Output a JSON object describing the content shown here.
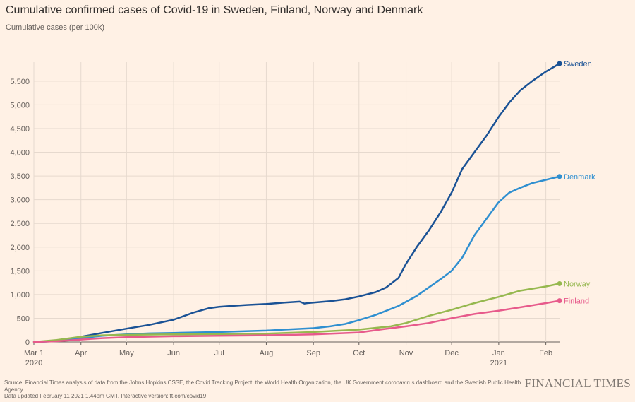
{
  "title": "Cumulative confirmed cases of Covid-19 in Sweden, Finland, Norway and Denmark",
  "subtitle": "Cumulative cases (per 100k)",
  "footer": {
    "source": "Source: Financial Times analysis of data from the Johns Hopkins CSSE, the Covid Tracking Project, the World Health Organization, the UK Government coronavirus dashboard and the Swedish Public Health Agency.",
    "updated": "Data updated February 11 2021 1.44pm GMT. Interactive version: ft.com/covid19"
  },
  "logo": "FINANCIAL TIMES",
  "chart_data": {
    "type": "line",
    "title": "Cumulative confirmed cases of Covid-19 in Sweden, Finland, Norway and Denmark",
    "ylabel": "Cumulative cases (per 100k)",
    "xlabel": "",
    "x_unit": "days since Mar 1 2020",
    "xlim": [
      0,
      346
    ],
    "ylim": [
      0,
      5900
    ],
    "yticks": [
      0,
      500,
      1000,
      1500,
      2000,
      2500,
      3000,
      3500,
      4000,
      4500,
      5000,
      5500
    ],
    "ytick_labels": [
      "0",
      "500",
      "1,000",
      "1,500",
      "2,000",
      "2,500",
      "3,000",
      "3,500",
      "4,000",
      "4,500",
      "5,000",
      "5,500"
    ],
    "xticks": [
      {
        "x": 0,
        "label": "Mar 1",
        "sublabel": "2020"
      },
      {
        "x": 31,
        "label": "Apr",
        "sublabel": ""
      },
      {
        "x": 61,
        "label": "May",
        "sublabel": ""
      },
      {
        "x": 92,
        "label": "Jun",
        "sublabel": ""
      },
      {
        "x": 122,
        "label": "Jul",
        "sublabel": ""
      },
      {
        "x": 153,
        "label": "Aug",
        "sublabel": ""
      },
      {
        "x": 184,
        "label": "Sep",
        "sublabel": ""
      },
      {
        "x": 214,
        "label": "Oct",
        "sublabel": ""
      },
      {
        "x": 245,
        "label": "Nov",
        "sublabel": ""
      },
      {
        "x": 275,
        "label": "Dec",
        "sublabel": ""
      },
      {
        "x": 306,
        "label": "Jan",
        "sublabel": "2021"
      },
      {
        "x": 337,
        "label": "Feb",
        "sublabel": ""
      }
    ],
    "grid": true,
    "series": [
      {
        "name": "Sweden",
        "color": "#1a5295",
        "x": [
          0,
          10,
          20,
          31,
          45,
          61,
          76,
          92,
          105,
          115,
          122,
          130,
          140,
          153,
          165,
          175,
          178,
          180,
          184,
          195,
          205,
          214,
          225,
          232,
          240,
          245,
          252,
          260,
          268,
          275,
          282,
          290,
          298,
          306,
          313,
          320,
          328,
          337,
          346
        ],
        "y": [
          0,
          10,
          40,
          110,
          190,
          280,
          360,
          470,
          620,
          710,
          740,
          760,
          780,
          800,
          830,
          850,
          810,
          820,
          830,
          860,
          900,
          960,
          1050,
          1150,
          1350,
          1650,
          2000,
          2350,
          2750,
          3150,
          3650,
          4000,
          4350,
          4750,
          5050,
          5300,
          5500,
          5700,
          5870
        ]
      },
      {
        "name": "Denmark",
        "color": "#2f8fd0",
        "x": [
          0,
          15,
          31,
          45,
          61,
          76,
          92,
          122,
          153,
          165,
          184,
          195,
          205,
          214,
          225,
          240,
          252,
          260,
          268,
          275,
          282,
          290,
          298,
          306,
          313,
          320,
          328,
          337,
          346
        ],
        "y": [
          0,
          20,
          80,
          130,
          160,
          180,
          190,
          210,
          240,
          260,
          290,
          330,
          380,
          460,
          570,
          760,
          970,
          1150,
          1330,
          1500,
          1780,
          2250,
          2600,
          2950,
          3150,
          3250,
          3350,
          3420,
          3490
        ]
      },
      {
        "name": "Norway",
        "color": "#96b84f",
        "x": [
          0,
          15,
          31,
          45,
          61,
          92,
          122,
          153,
          184,
          214,
          235,
          245,
          260,
          275,
          290,
          306,
          320,
          337,
          346
        ],
        "y": [
          0,
          40,
          110,
          140,
          150,
          160,
          165,
          175,
          210,
          260,
          330,
          400,
          550,
          680,
          820,
          950,
          1080,
          1170,
          1230
        ]
      },
      {
        "name": "Finland",
        "color": "#e75a8b",
        "x": [
          0,
          15,
          31,
          45,
          61,
          92,
          122,
          153,
          184,
          214,
          230,
          245,
          260,
          275,
          290,
          306,
          320,
          337,
          346
        ],
        "y": [
          0,
          15,
          50,
          80,
          100,
          120,
          130,
          140,
          160,
          200,
          270,
          330,
          400,
          500,
          590,
          660,
          730,
          820,
          870
        ]
      }
    ]
  }
}
